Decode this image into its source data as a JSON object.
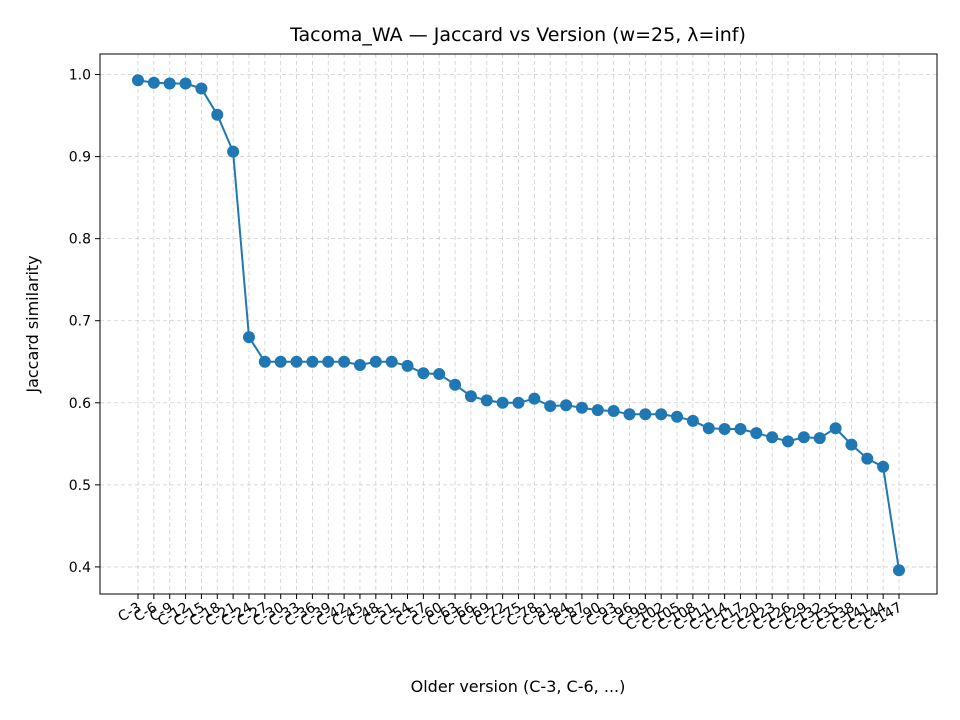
{
  "chart_data": {
    "type": "line",
    "title": "Tacoma_WA — Jaccard vs Version (w=25, λ=inf)",
    "xlabel": "Older version (C-3, C-6, ...)",
    "ylabel": "Jaccard similarity",
    "ylim": [
      0.367,
      1.025
    ],
    "yticks": [
      "0.4",
      "0.5",
      "0.6",
      "0.7",
      "0.8",
      "0.9",
      "1.0"
    ],
    "grid": true,
    "color": "#1f77b4",
    "categories": [
      "C-3",
      "C-6",
      "C-9",
      "C-12",
      "C-15",
      "C-18",
      "C-21",
      "C-24",
      "C-27",
      "C-30",
      "C-33",
      "C-36",
      "C-39",
      "C-42",
      "C-45",
      "C-48",
      "C-51",
      "C-54",
      "C-57",
      "C-60",
      "C-63",
      "C-66",
      "C-69",
      "C-72",
      "C-75",
      "C-78",
      "C-81",
      "C-84",
      "C-87",
      "C-90",
      "C-93",
      "C-96",
      "C-99",
      "C-102",
      "C-105",
      "C-108",
      "C-111",
      "C-114",
      "C-117",
      "C-120",
      "C-123",
      "C-126",
      "C-129",
      "C-132",
      "C-135",
      "C-138",
      "C-141",
      "C-144",
      "C-147"
    ],
    "values": [
      0.993,
      0.99,
      0.989,
      0.989,
      0.983,
      0.951,
      0.906,
      0.68,
      0.65,
      0.65,
      0.65,
      0.65,
      0.65,
      0.65,
      0.646,
      0.65,
      0.65,
      0.645,
      0.636,
      0.635,
      0.622,
      0.608,
      0.603,
      0.6,
      0.6,
      0.605,
      0.596,
      0.597,
      0.594,
      0.591,
      0.59,
      0.586,
      0.586,
      0.586,
      0.583,
      0.578,
      0.569,
      0.568,
      0.568,
      0.563,
      0.558,
      0.553,
      0.558,
      0.557,
      0.569,
      0.549,
      0.532,
      0.522,
      0.396
    ]
  }
}
